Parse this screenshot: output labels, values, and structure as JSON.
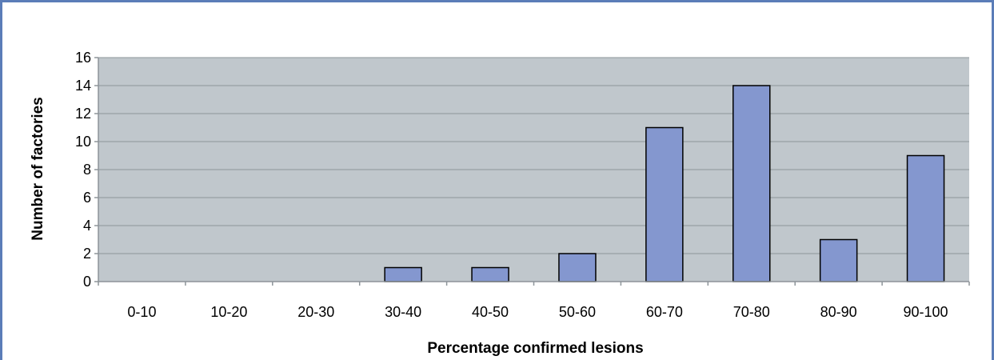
{
  "chart_data": {
    "type": "bar",
    "categories": [
      "0-10",
      "10-20",
      "20-30",
      "30-40",
      "40-50",
      "50-60",
      "60-70",
      "70-80",
      "80-90",
      "90-100"
    ],
    "values": [
      0,
      0,
      0,
      1,
      1,
      2,
      11,
      14,
      3,
      9
    ],
    "xlabel": "Percentage confirmed lesions",
    "ylabel": "Number of factories",
    "ylim": [
      0,
      16
    ],
    "yticks": [
      0,
      2,
      4,
      6,
      8,
      10,
      12,
      14,
      16
    ],
    "grid": "horizontal",
    "legend": "none",
    "colors": {
      "bar_fill": "#8497cf",
      "bar_stroke": "#000000",
      "plot_background": "#c0c7cc",
      "gridline": "#8d9499",
      "frame_border": "#5b7db8"
    }
  }
}
